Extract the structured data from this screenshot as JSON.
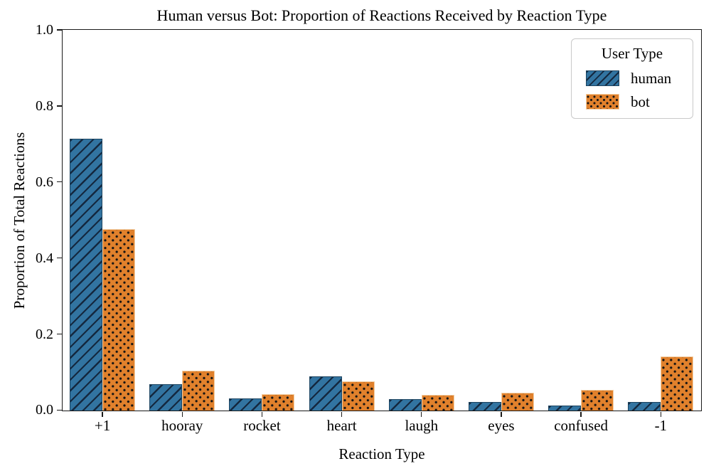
{
  "figure": {
    "title": "Human versus Bot: Proportion of Reactions Received by Reaction Type"
  },
  "axes": {
    "xlabel": "Reaction Type",
    "ylabel": "Proportion of Total Reactions"
  },
  "legend": {
    "title": "User Type",
    "entries": [
      {
        "label": "human",
        "swatch": "blue-diagonal-hatch-swatch"
      },
      {
        "label": "bot",
        "swatch": "orange-dot-hatch-swatch"
      }
    ]
  },
  "colors": {
    "human_bar": "#3274a1",
    "bot_bar": "#e1812c",
    "hatch": "#141414",
    "axis": "#1a1a1a",
    "legend_border": "#c9c9c9"
  },
  "chart_data": {
    "type": "bar",
    "title": "Human versus Bot: Proportion of Reactions Received by Reaction Type",
    "xlabel": "Reaction Type",
    "ylabel": "Proportion of Total Reactions",
    "categories": [
      "+1",
      "hooray",
      "rocket",
      "heart",
      "laugh",
      "eyes",
      "confused",
      "-1"
    ],
    "series": [
      {
        "name": "human",
        "color": "#3274a1",
        "hatch": "/",
        "values": [
          0.715,
          0.07,
          0.032,
          0.089,
          0.03,
          0.023,
          0.013,
          0.022
        ]
      },
      {
        "name": "bot",
        "color": "#e1812c",
        "hatch": ".",
        "values": [
          0.478,
          0.105,
          0.043,
          0.077,
          0.041,
          0.046,
          0.055,
          0.142
        ]
      }
    ],
    "ylim": [
      0.0,
      1.0
    ],
    "yticks": [
      0.0,
      0.2,
      0.4,
      0.6,
      0.8,
      1.0
    ],
    "legend_title": "User Type",
    "legend_position": "upper right",
    "grid": false
  }
}
